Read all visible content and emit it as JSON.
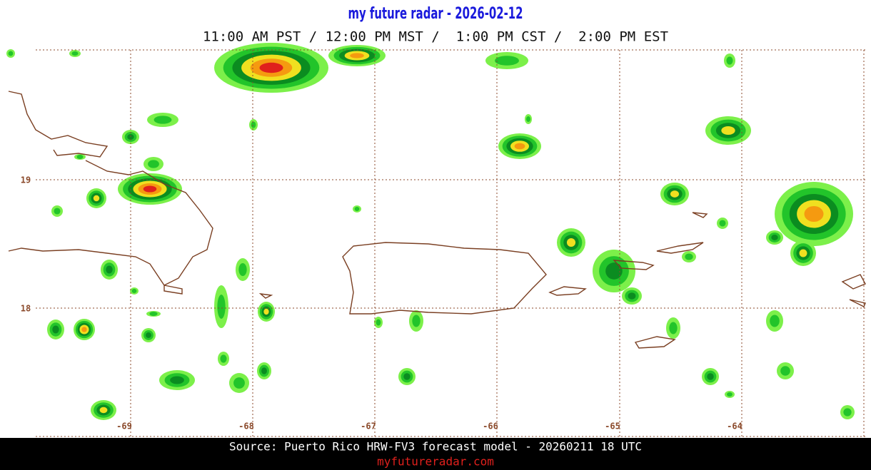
{
  "header": {
    "title": "my future radar - 2026-02-12",
    "subtitle": "11:00 AM PST / 12:00 PM MST /  1:00 PM CST /  2:00 PM EST"
  },
  "map": {
    "lat_labels": [
      "19",
      "18"
    ],
    "lon_labels": [
      "-69",
      "-68",
      "-67",
      "-66",
      "-65",
      "-64"
    ]
  },
  "footer": {
    "source": "Source: Puerto Rico HRW-FV3 forecast model - 20260211 18 UTC",
    "site": "myfutureradar.com"
  }
}
